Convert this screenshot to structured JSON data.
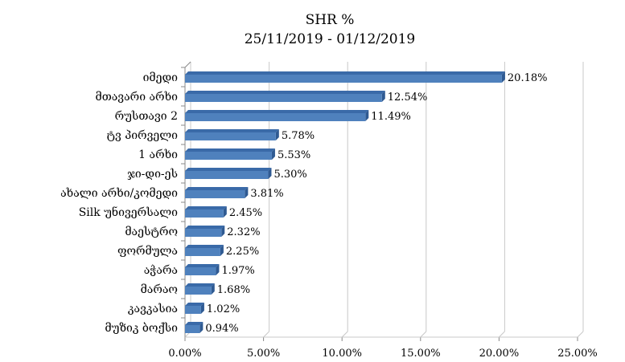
{
  "chart_data": {
    "type": "bar",
    "orientation": "horizontal",
    "title": "SHR %",
    "subtitle": "25/11/2019 - 01/12/2019",
    "categories": [
      "იმედი",
      "მთავარი არხი",
      "რუსთავი 2",
      "ტვ პირველი",
      "1 არხი",
      "ჯი-დი-ეს",
      "ახალი არხი/კომედი",
      "Silk უნივერსალი",
      "მაესტრო",
      "ფორმულა",
      "აჭარა",
      "მარაო",
      "კავკასია",
      "მუზიკ ბოქსი"
    ],
    "values": [
      20.18,
      12.54,
      11.49,
      5.78,
      5.53,
      5.3,
      3.81,
      2.45,
      2.32,
      2.25,
      1.97,
      1.68,
      1.02,
      0.94
    ],
    "value_labels": [
      "20.18%",
      "12.54%",
      "11.49%",
      "5.78%",
      "5.53%",
      "5.30%",
      "3.81%",
      "2.45%",
      "2.32%",
      "2.25%",
      "1.97%",
      "1.68%",
      "1.02%",
      "0.94%"
    ],
    "xlim": [
      0,
      25
    ],
    "x_ticks": [
      "0.00%",
      "5.00%",
      "10.00%",
      "15.00%",
      "20.00%",
      "25.00%"
    ],
    "grid": true,
    "legend": "none",
    "bar_color": "#4F81BD"
  }
}
